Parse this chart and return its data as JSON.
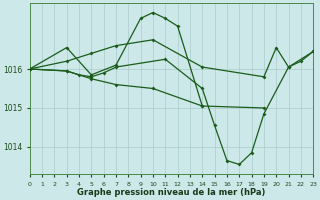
{
  "title": "Graphe pression niveau de la mer (hPa)",
  "background_color": "#cce8e8",
  "line_color": "#1a5c1a",
  "xlim": [
    0,
    23
  ],
  "ylim": [
    1013.3,
    1017.7
  ],
  "yticks": [
    1014,
    1015,
    1016
  ],
  "xticks": [
    0,
    1,
    2,
    3,
    4,
    5,
    6,
    7,
    8,
    9,
    10,
    11,
    12,
    13,
    14,
    15,
    16,
    17,
    18,
    19,
    20,
    21,
    22,
    23
  ],
  "series1_x": [
    0,
    3,
    5,
    7,
    9,
    10,
    11,
    12,
    14
  ],
  "series1_y": [
    1016.0,
    1016.55,
    1015.85,
    1016.1,
    1017.3,
    1017.45,
    1017.3,
    1017.1,
    1015.05
  ],
  "series2_x": [
    0,
    3,
    4,
    5,
    6,
    7,
    11,
    14,
    15,
    16,
    17,
    18,
    19,
    21,
    22,
    23
  ],
  "series2_y": [
    1016.0,
    1015.95,
    1015.85,
    1015.8,
    1015.9,
    1016.05,
    1016.25,
    1015.5,
    1014.55,
    1013.65,
    1013.55,
    1013.85,
    1014.85,
    1016.05,
    1016.2,
    1016.45
  ],
  "series3_x": [
    0,
    3,
    5,
    7,
    10,
    14,
    19,
    20,
    21,
    23
  ],
  "series3_y": [
    1016.0,
    1016.2,
    1016.4,
    1016.6,
    1016.75,
    1016.05,
    1015.8,
    1016.55,
    1016.05,
    1016.45
  ],
  "series4_x": [
    0,
    3,
    5,
    7,
    10,
    14,
    19
  ],
  "series4_y": [
    1016.0,
    1015.95,
    1015.75,
    1015.6,
    1015.5,
    1015.05,
    1015.0
  ]
}
